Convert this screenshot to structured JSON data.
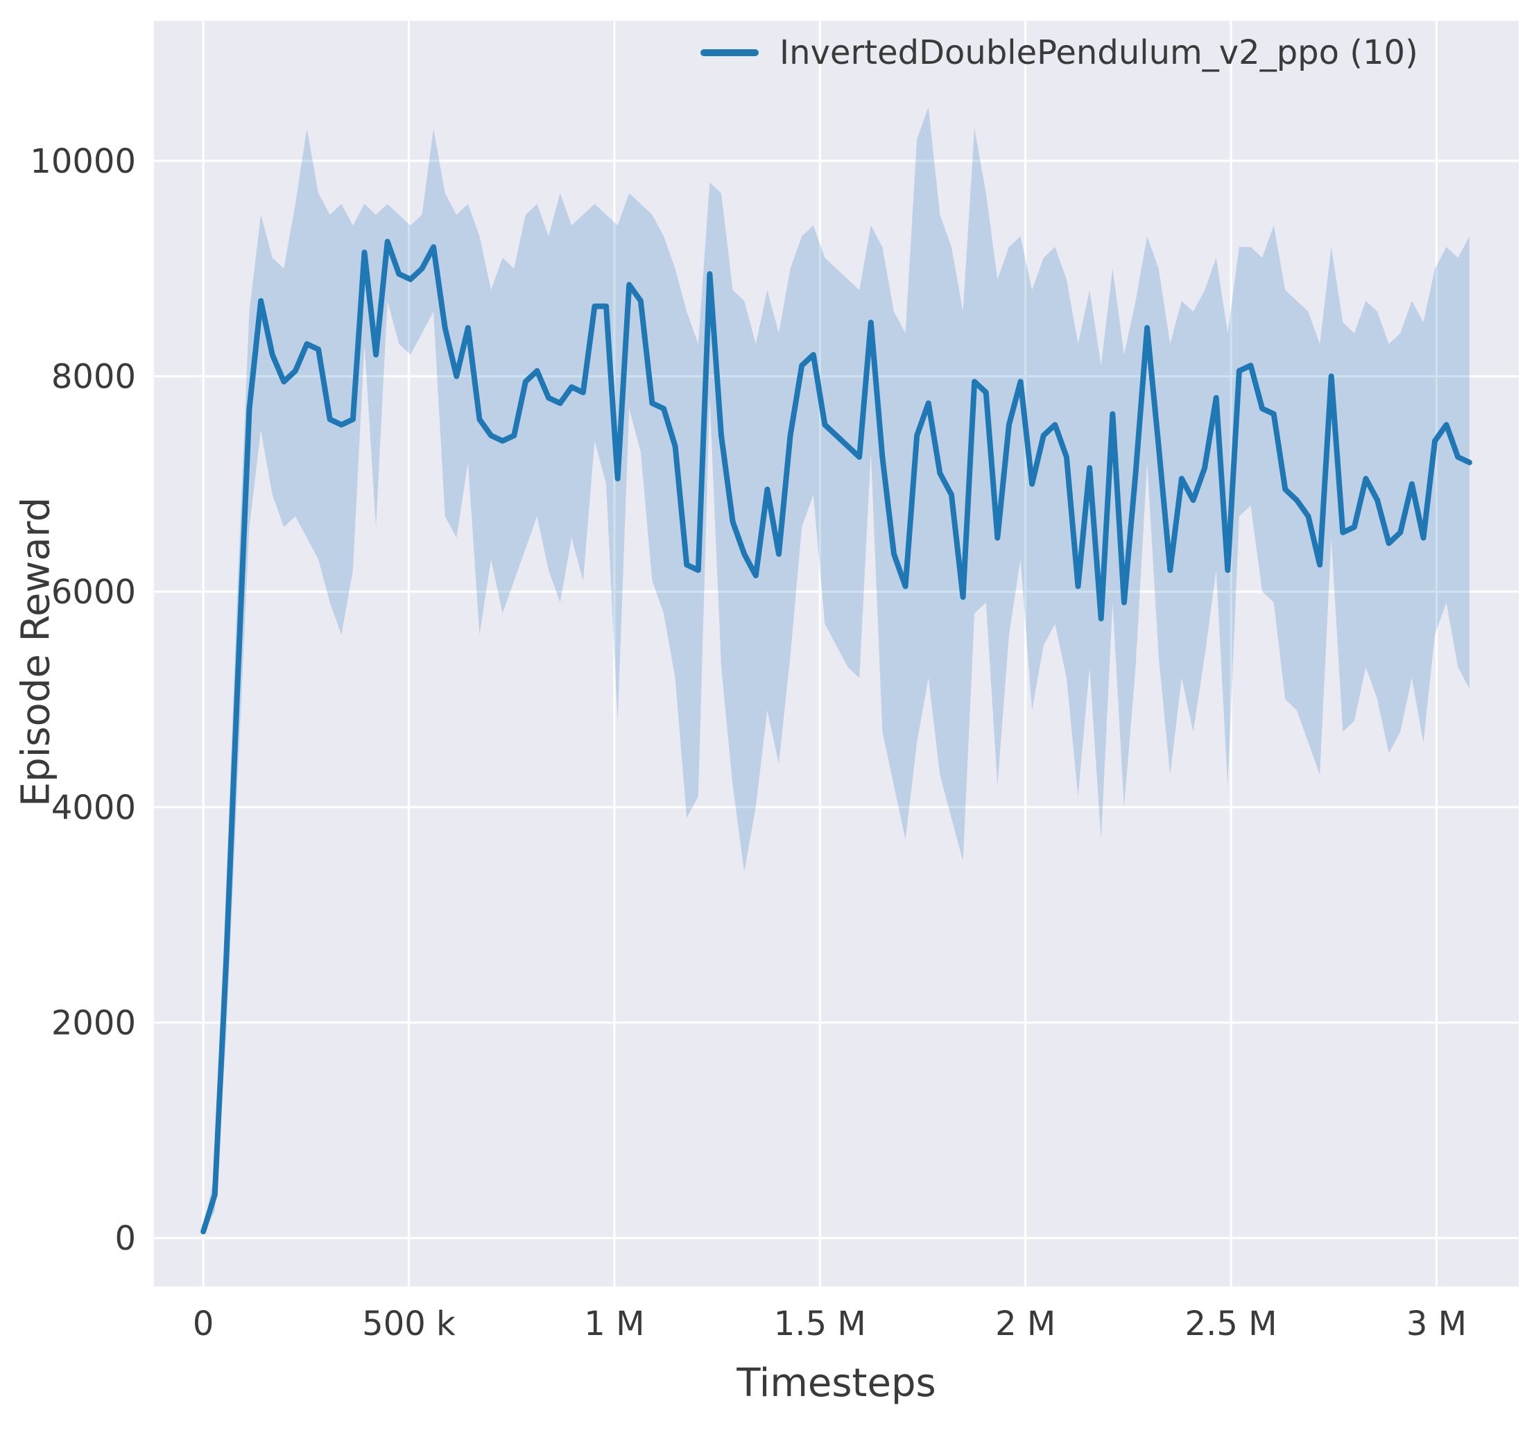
{
  "chart_data": {
    "type": "line",
    "title": "",
    "xlabel": "Timesteps",
    "ylabel": "Episode Reward",
    "grid": true,
    "legend_position": "upper right",
    "xlim": [
      -120000,
      3200000
    ],
    "ylim": [
      -450,
      11300
    ],
    "xticks": [
      {
        "value": 0,
        "label": "0"
      },
      {
        "value": 500000,
        "label": "500 k"
      },
      {
        "value": 1000000,
        "label": "1 M"
      },
      {
        "value": 1500000,
        "label": "1.5 M"
      },
      {
        "value": 2000000,
        "label": "2 M"
      },
      {
        "value": 2500000,
        "label": "2.5 M"
      },
      {
        "value": 3000000,
        "label": "3 M"
      }
    ],
    "yticks": [
      {
        "value": 0,
        "label": "0"
      },
      {
        "value": 2000,
        "label": "2000"
      },
      {
        "value": 4000,
        "label": "4000"
      },
      {
        "value": 6000,
        "label": "6000"
      },
      {
        "value": 8000,
        "label": "8000"
      },
      {
        "value": 10000,
        "label": "10000"
      }
    ],
    "colors": {
      "line": "#1f77b4",
      "band": "#1f77b4",
      "band_opacity": 0.22,
      "plot_bg": "#eaeaf2",
      "grid": "#ffffff",
      "text": "#3a3a3a"
    },
    "series": [
      {
        "name": "InvertedDoublePendulum_v2_ppo (10)",
        "x": [
          0,
          28000,
          56000,
          84000,
          112000,
          140000,
          168000,
          196000,
          224000,
          252000,
          280000,
          308000,
          336000,
          364000,
          392000,
          420000,
          448000,
          476000,
          504000,
          532000,
          560000,
          588000,
          616000,
          644000,
          672000,
          700000,
          728000,
          756000,
          784000,
          812000,
          840000,
          868000,
          896000,
          924000,
          952000,
          980000,
          1008000,
          1036000,
          1064000,
          1092000,
          1120000,
          1148000,
          1176000,
          1204000,
          1232000,
          1260000,
          1288000,
          1316000,
          1344000,
          1372000,
          1400000,
          1428000,
          1456000,
          1484000,
          1512000,
          1540000,
          1568000,
          1596000,
          1624000,
          1652000,
          1680000,
          1708000,
          1736000,
          1764000,
          1792000,
          1820000,
          1848000,
          1876000,
          1904000,
          1932000,
          1960000,
          1988000,
          2016000,
          2044000,
          2072000,
          2100000,
          2128000,
          2156000,
          2184000,
          2212000,
          2240000,
          2268000,
          2296000,
          2324000,
          2352000,
          2380000,
          2408000,
          2436000,
          2464000,
          2492000,
          2520000,
          2548000,
          2576000,
          2604000,
          2632000,
          2660000,
          2688000,
          2716000,
          2744000,
          2772000,
          2800000,
          2828000,
          2856000,
          2884000,
          2912000,
          2940000,
          2968000,
          2996000,
          3024000,
          3052000,
          3080000
        ],
        "mean": [
          60,
          400,
          2600,
          5200,
          7700,
          8700,
          8200,
          7950,
          8050,
          8300,
          8250,
          7600,
          7550,
          7600,
          9150,
          8200,
          9250,
          8950,
          8900,
          9000,
          9200,
          8450,
          8000,
          8450,
          7600,
          7450,
          7400,
          7450,
          7950,
          8050,
          7800,
          7750,
          7900,
          7850,
          8650,
          8650,
          7050,
          8850,
          8700,
          7750,
          7700,
          7350,
          6250,
          6200,
          8950,
          7450,
          6650,
          6350,
          6150,
          6950,
          6350,
          7450,
          8100,
          8200,
          7550,
          7450,
          7350,
          7250,
          8500,
          7250,
          6350,
          6050,
          7450,
          7750,
          7100,
          6900,
          5950,
          7950,
          7850,
          6500,
          7550,
          7950,
          7000,
          7450,
          7550,
          7250,
          6050,
          7150,
          5750,
          7650,
          5900,
          7100,
          8450,
          7350,
          6200,
          7050,
          6850,
          7150,
          7800,
          6200,
          8050,
          8100,
          7700,
          7650,
          6950,
          6850,
          6700,
          6250,
          8000,
          6550,
          6600,
          7050,
          6850,
          6450,
          6550,
          7000,
          6500,
          7400,
          7550,
          7250,
          7200
        ],
        "band_low": [
          40,
          250,
          1900,
          4300,
          6600,
          7500,
          6900,
          6600,
          6700,
          6500,
          6300,
          5900,
          5600,
          6200,
          8300,
          6600,
          8700,
          8300,
          8200,
          8400,
          8600,
          6700,
          6500,
          7200,
          5600,
          6300,
          5800,
          6100,
          6400,
          6700,
          6200,
          5900,
          6500,
          6100,
          7400,
          7000,
          4800,
          7700,
          7300,
          6100,
          5800,
          5200,
          3900,
          4100,
          7800,
          5300,
          4200,
          3400,
          4000,
          4900,
          4400,
          5400,
          6600,
          6900,
          5700,
          5500,
          5300,
          5200,
          7300,
          4700,
          4200,
          3700,
          4600,
          5200,
          4300,
          3900,
          3500,
          5800,
          5900,
          4200,
          5600,
          6300,
          4900,
          5500,
          5700,
          5200,
          4100,
          5300,
          3700,
          5900,
          4000,
          5300,
          7200,
          5400,
          4300,
          5200,
          4700,
          5400,
          6200,
          4200,
          6700,
          6800,
          6000,
          5900,
          5000,
          4900,
          4600,
          4300,
          6500,
          4700,
          4800,
          5300,
          5000,
          4500,
          4700,
          5200,
          4600,
          5600,
          5900,
          5300,
          5100
        ],
        "band_high": [
          90,
          600,
          3300,
          6100,
          8600,
          9500,
          9100,
          9000,
          9600,
          10300,
          9700,
          9500,
          9600,
          9400,
          9600,
          9500,
          9600,
          9500,
          9400,
          9500,
          10300,
          9700,
          9500,
          9600,
          9300,
          8800,
          9100,
          9000,
          9500,
          9600,
          9300,
          9700,
          9400,
          9500,
          9600,
          9500,
          9400,
          9700,
          9600,
          9500,
          9300,
          9000,
          8600,
          8300,
          9800,
          9700,
          8800,
          8700,
          8300,
          8800,
          8400,
          9000,
          9300,
          9400,
          9100,
          9000,
          8900,
          8800,
          9400,
          9200,
          8600,
          8400,
          10200,
          10500,
          9500,
          9200,
          8600,
          10300,
          9700,
          8900,
          9200,
          9300,
          8800,
          9100,
          9200,
          8900,
          8300,
          8800,
          8100,
          9000,
          8200,
          8700,
          9300,
          9000,
          8300,
          8700,
          8600,
          8800,
          9100,
          8400,
          9200,
          9200,
          9100,
          9400,
          8800,
          8700,
          8600,
          8300,
          9200,
          8500,
          8400,
          8700,
          8600,
          8300,
          8400,
          8700,
          8500,
          9000,
          9200,
          9100,
          9300
        ]
      }
    ]
  }
}
